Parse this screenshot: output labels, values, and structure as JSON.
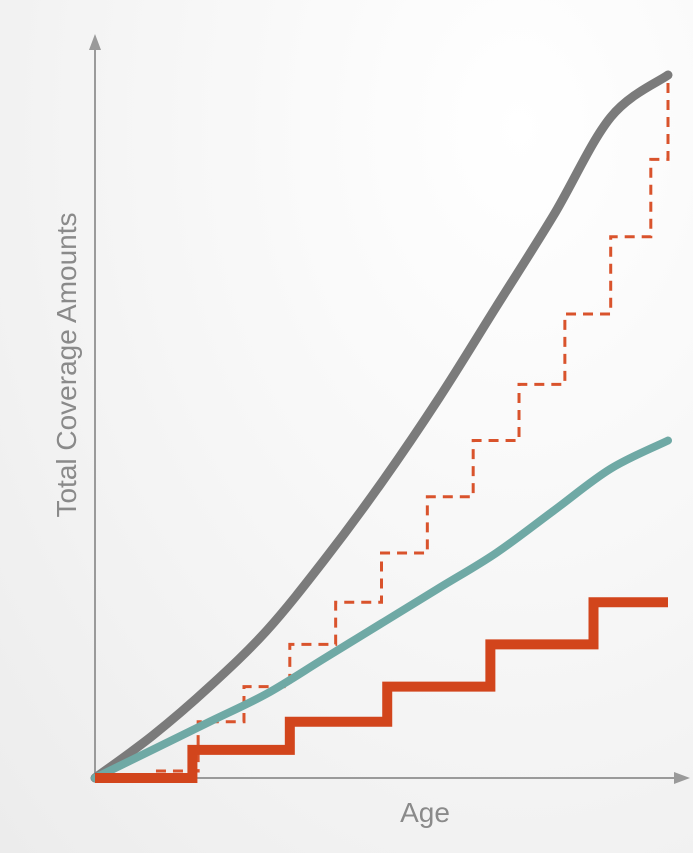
{
  "chart_data": {
    "type": "line",
    "title": "",
    "xlabel": "Age",
    "ylabel": "Total Coverage Amounts",
    "xlim": [
      0,
      100
    ],
    "ylim": [
      0,
      100
    ],
    "grid": false,
    "legend": "none",
    "series": [
      {
        "style": "solid-curve",
        "color": "#7b7b7b",
        "x": [
          0,
          10,
          20,
          30,
          40,
          50,
          60,
          70,
          80,
          90,
          100
        ],
        "values": [
          0,
          6,
          13,
          21,
          31,
          42,
          54,
          67,
          80,
          94,
          100
        ]
      },
      {
        "style": "solid-curve",
        "color": "#6fa9a5",
        "x": [
          0,
          10,
          20,
          30,
          40,
          50,
          60,
          70,
          80,
          90,
          100
        ],
        "values": [
          0,
          4,
          8,
          12,
          17,
          22,
          27,
          32,
          38,
          44,
          48
        ]
      },
      {
        "style": "step-dashed",
        "color": "#d9532c",
        "x": [
          0,
          10,
          18,
          26,
          34,
          42,
          50,
          58,
          66,
          74,
          82,
          90,
          97,
          100
        ],
        "values": [
          0,
          1,
          8,
          13,
          19,
          25,
          32,
          40,
          48,
          56,
          66,
          77,
          88,
          100
        ]
      },
      {
        "style": "step-solid",
        "color": "#d2451c",
        "x": [
          0,
          0,
          17,
          17,
          34,
          34,
          51,
          51,
          69,
          69,
          87,
          87,
          100
        ],
        "values": [
          0,
          0,
          0,
          4,
          4,
          8,
          8,
          13,
          13,
          19,
          19,
          25,
          25
        ]
      }
    ]
  }
}
